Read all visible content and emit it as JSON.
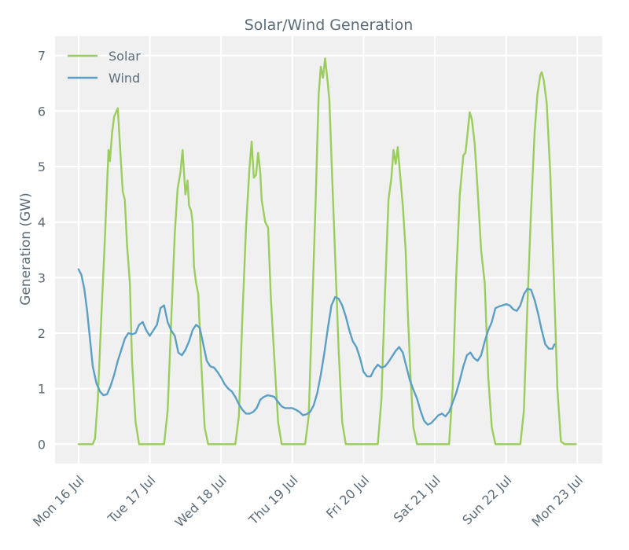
{
  "chart_data": {
    "type": "line",
    "title": "Solar/Wind Generation",
    "xlabel": "",
    "ylabel": "Generation (GW)",
    "ylim": [
      -0.35,
      7.35
    ],
    "xlim": [
      -0.33,
      7.35
    ],
    "yticks": [
      0,
      1,
      2,
      3,
      4,
      5,
      6,
      7
    ],
    "x_tick_positions": [
      0,
      1,
      2,
      3,
      4,
      5,
      6,
      7
    ],
    "x_tick_labels": [
      "Mon 16 Jul",
      "Tue 17 Jul",
      "Wed 18 Jul",
      "Thu 19 Jul",
      "Fri 20 Jul",
      "Sat 21 Jul",
      "Sun 22 Jul",
      "Mon 23 Jul"
    ],
    "grid": true,
    "legend_position": "top-left",
    "series": [
      {
        "name": "Solar",
        "color": "#9acd5c",
        "points": [
          [
            0.0,
            0.0
          ],
          [
            0.2,
            0.0
          ],
          [
            0.23,
            0.1
          ],
          [
            0.27,
            0.8
          ],
          [
            0.32,
            2.3
          ],
          [
            0.37,
            3.7
          ],
          [
            0.42,
            5.3
          ],
          [
            0.44,
            5.1
          ],
          [
            0.47,
            5.6
          ],
          [
            0.5,
            5.9
          ],
          [
            0.55,
            6.05
          ],
          [
            0.58,
            5.4
          ],
          [
            0.62,
            4.55
          ],
          [
            0.65,
            4.4
          ],
          [
            0.68,
            3.6
          ],
          [
            0.72,
            2.9
          ],
          [
            0.75,
            1.5
          ],
          [
            0.8,
            0.4
          ],
          [
            0.85,
            0.0
          ],
          [
            1.2,
            0.0
          ],
          [
            1.25,
            0.6
          ],
          [
            1.3,
            2.2
          ],
          [
            1.35,
            3.8
          ],
          [
            1.39,
            4.6
          ],
          [
            1.43,
            4.9
          ],
          [
            1.46,
            5.3
          ],
          [
            1.48,
            4.9
          ],
          [
            1.5,
            4.5
          ],
          [
            1.53,
            4.75
          ],
          [
            1.55,
            4.3
          ],
          [
            1.58,
            4.2
          ],
          [
            1.6,
            4.0
          ],
          [
            1.62,
            3.2
          ],
          [
            1.65,
            2.9
          ],
          [
            1.68,
            2.7
          ],
          [
            1.72,
            1.5
          ],
          [
            1.77,
            0.3
          ],
          [
            1.82,
            0.0
          ],
          [
            2.2,
            0.0
          ],
          [
            2.25,
            0.5
          ],
          [
            2.3,
            2.3
          ],
          [
            2.35,
            3.9
          ],
          [
            2.4,
            5.0
          ],
          [
            2.43,
            5.45
          ],
          [
            2.46,
            4.8
          ],
          [
            2.49,
            4.85
          ],
          [
            2.52,
            5.25
          ],
          [
            2.55,
            4.9
          ],
          [
            2.57,
            4.4
          ],
          [
            2.62,
            4.0
          ],
          [
            2.66,
            3.9
          ],
          [
            2.7,
            2.6
          ],
          [
            2.75,
            1.5
          ],
          [
            2.8,
            0.4
          ],
          [
            2.85,
            0.0
          ],
          [
            3.18,
            0.0
          ],
          [
            3.23,
            0.5
          ],
          [
            3.28,
            2.5
          ],
          [
            3.33,
            4.5
          ],
          [
            3.37,
            6.3
          ],
          [
            3.4,
            6.8
          ],
          [
            3.43,
            6.6
          ],
          [
            3.46,
            6.95
          ],
          [
            3.49,
            6.6
          ],
          [
            3.52,
            6.2
          ],
          [
            3.56,
            4.8
          ],
          [
            3.6,
            3.4
          ],
          [
            3.65,
            1.7
          ],
          [
            3.7,
            0.4
          ],
          [
            3.75,
            0.0
          ],
          [
            4.2,
            0.0
          ],
          [
            4.25,
            0.8
          ],
          [
            4.3,
            2.7
          ],
          [
            4.35,
            4.4
          ],
          [
            4.39,
            4.8
          ],
          [
            4.42,
            5.3
          ],
          [
            4.45,
            5.05
          ],
          [
            4.48,
            5.35
          ],
          [
            4.51,
            4.9
          ],
          [
            4.55,
            4.3
          ],
          [
            4.59,
            3.5
          ],
          [
            4.62,
            2.4
          ],
          [
            4.66,
            1.2
          ],
          [
            4.7,
            0.3
          ],
          [
            4.75,
            0.0
          ],
          [
            5.2,
            0.0
          ],
          [
            5.25,
            1.0
          ],
          [
            5.3,
            3.0
          ],
          [
            5.35,
            4.5
          ],
          [
            5.4,
            5.2
          ],
          [
            5.43,
            5.25
          ],
          [
            5.46,
            5.6
          ],
          [
            5.49,
            5.98
          ],
          [
            5.52,
            5.85
          ],
          [
            5.56,
            5.4
          ],
          [
            5.6,
            4.6
          ],
          [
            5.65,
            3.5
          ],
          [
            5.7,
            2.9
          ],
          [
            5.75,
            1.2
          ],
          [
            5.8,
            0.3
          ],
          [
            5.85,
            0.0
          ],
          [
            6.2,
            0.0
          ],
          [
            6.25,
            0.6
          ],
          [
            6.3,
            2.5
          ],
          [
            6.35,
            4.2
          ],
          [
            6.4,
            5.6
          ],
          [
            6.44,
            6.3
          ],
          [
            6.48,
            6.65
          ],
          [
            6.5,
            6.7
          ],
          [
            6.53,
            6.55
          ],
          [
            6.57,
            6.15
          ],
          [
            6.62,
            4.9
          ],
          [
            6.67,
            3.0
          ],
          [
            6.72,
            1.0
          ],
          [
            6.77,
            0.05
          ],
          [
            6.82,
            0.0
          ],
          [
            6.98,
            0.0
          ]
        ]
      },
      {
        "name": "Wind",
        "color": "#5b9fc5",
        "points": [
          [
            0.0,
            3.15
          ],
          [
            0.04,
            3.05
          ],
          [
            0.08,
            2.8
          ],
          [
            0.12,
            2.4
          ],
          [
            0.16,
            1.9
          ],
          [
            0.2,
            1.4
          ],
          [
            0.25,
            1.1
          ],
          [
            0.3,
            0.95
          ],
          [
            0.35,
            0.88
          ],
          [
            0.4,
            0.9
          ],
          [
            0.45,
            1.05
          ],
          [
            0.5,
            1.25
          ],
          [
            0.55,
            1.5
          ],
          [
            0.6,
            1.7
          ],
          [
            0.65,
            1.9
          ],
          [
            0.7,
            2.0
          ],
          [
            0.75,
            1.98
          ],
          [
            0.8,
            2.0
          ],
          [
            0.85,
            2.15
          ],
          [
            0.9,
            2.2
          ],
          [
            0.95,
            2.05
          ],
          [
            1.0,
            1.95
          ],
          [
            1.05,
            2.05
          ],
          [
            1.1,
            2.15
          ],
          [
            1.15,
            2.45
          ],
          [
            1.2,
            2.5
          ],
          [
            1.25,
            2.2
          ],
          [
            1.3,
            2.05
          ],
          [
            1.35,
            1.95
          ],
          [
            1.4,
            1.65
          ],
          [
            1.45,
            1.6
          ],
          [
            1.5,
            1.7
          ],
          [
            1.55,
            1.85
          ],
          [
            1.6,
            2.05
          ],
          [
            1.65,
            2.15
          ],
          [
            1.7,
            2.1
          ],
          [
            1.75,
            1.8
          ],
          [
            1.8,
            1.5
          ],
          [
            1.85,
            1.4
          ],
          [
            1.9,
            1.38
          ],
          [
            1.95,
            1.3
          ],
          [
            2.0,
            1.2
          ],
          [
            2.05,
            1.08
          ],
          [
            2.1,
            1.0
          ],
          [
            2.15,
            0.95
          ],
          [
            2.2,
            0.85
          ],
          [
            2.25,
            0.72
          ],
          [
            2.3,
            0.62
          ],
          [
            2.35,
            0.55
          ],
          [
            2.4,
            0.55
          ],
          [
            2.45,
            0.58
          ],
          [
            2.5,
            0.65
          ],
          [
            2.55,
            0.8
          ],
          [
            2.6,
            0.85
          ],
          [
            2.65,
            0.88
          ],
          [
            2.7,
            0.87
          ],
          [
            2.75,
            0.85
          ],
          [
            2.8,
            0.76
          ],
          [
            2.85,
            0.68
          ],
          [
            2.9,
            0.65
          ],
          [
            2.95,
            0.65
          ],
          [
            3.0,
            0.65
          ],
          [
            3.05,
            0.62
          ],
          [
            3.1,
            0.58
          ],
          [
            3.15,
            0.52
          ],
          [
            3.2,
            0.54
          ],
          [
            3.25,
            0.58
          ],
          [
            3.3,
            0.7
          ],
          [
            3.35,
            0.92
          ],
          [
            3.4,
            1.25
          ],
          [
            3.45,
            1.65
          ],
          [
            3.5,
            2.1
          ],
          [
            3.55,
            2.5
          ],
          [
            3.6,
            2.65
          ],
          [
            3.65,
            2.62
          ],
          [
            3.7,
            2.5
          ],
          [
            3.75,
            2.3
          ],
          [
            3.8,
            2.05
          ],
          [
            3.85,
            1.85
          ],
          [
            3.9,
            1.75
          ],
          [
            3.95,
            1.55
          ],
          [
            4.0,
            1.3
          ],
          [
            4.05,
            1.22
          ],
          [
            4.1,
            1.22
          ],
          [
            4.15,
            1.35
          ],
          [
            4.2,
            1.43
          ],
          [
            4.25,
            1.38
          ],
          [
            4.3,
            1.4
          ],
          [
            4.35,
            1.48
          ],
          [
            4.4,
            1.58
          ],
          [
            4.45,
            1.68
          ],
          [
            4.5,
            1.75
          ],
          [
            4.55,
            1.65
          ],
          [
            4.6,
            1.4
          ],
          [
            4.65,
            1.15
          ],
          [
            4.7,
            0.98
          ],
          [
            4.75,
            0.82
          ],
          [
            4.8,
            0.6
          ],
          [
            4.85,
            0.42
          ],
          [
            4.9,
            0.35
          ],
          [
            4.95,
            0.38
          ],
          [
            5.0,
            0.45
          ],
          [
            5.05,
            0.52
          ],
          [
            5.1,
            0.55
          ],
          [
            5.15,
            0.5
          ],
          [
            5.2,
            0.58
          ],
          [
            5.25,
            0.75
          ],
          [
            5.3,
            0.92
          ],
          [
            5.35,
            1.15
          ],
          [
            5.4,
            1.4
          ],
          [
            5.45,
            1.6
          ],
          [
            5.5,
            1.65
          ],
          [
            5.55,
            1.55
          ],
          [
            5.6,
            1.5
          ],
          [
            5.65,
            1.6
          ],
          [
            5.7,
            1.85
          ],
          [
            5.75,
            2.05
          ],
          [
            5.8,
            2.2
          ],
          [
            5.85,
            2.45
          ],
          [
            5.9,
            2.48
          ],
          [
            5.95,
            2.5
          ],
          [
            6.0,
            2.52
          ],
          [
            6.05,
            2.5
          ],
          [
            6.1,
            2.43
          ],
          [
            6.15,
            2.4
          ],
          [
            6.2,
            2.5
          ],
          [
            6.25,
            2.7
          ],
          [
            6.3,
            2.8
          ],
          [
            6.35,
            2.78
          ],
          [
            6.4,
            2.6
          ],
          [
            6.45,
            2.35
          ],
          [
            6.5,
            2.05
          ],
          [
            6.55,
            1.8
          ],
          [
            6.6,
            1.72
          ],
          [
            6.65,
            1.72
          ],
          [
            6.68,
            1.8
          ]
        ]
      }
    ]
  },
  "colors": {
    "plot_background": "#f0f0f0",
    "grid": "#ffffff",
    "text": "#5b6b78"
  }
}
